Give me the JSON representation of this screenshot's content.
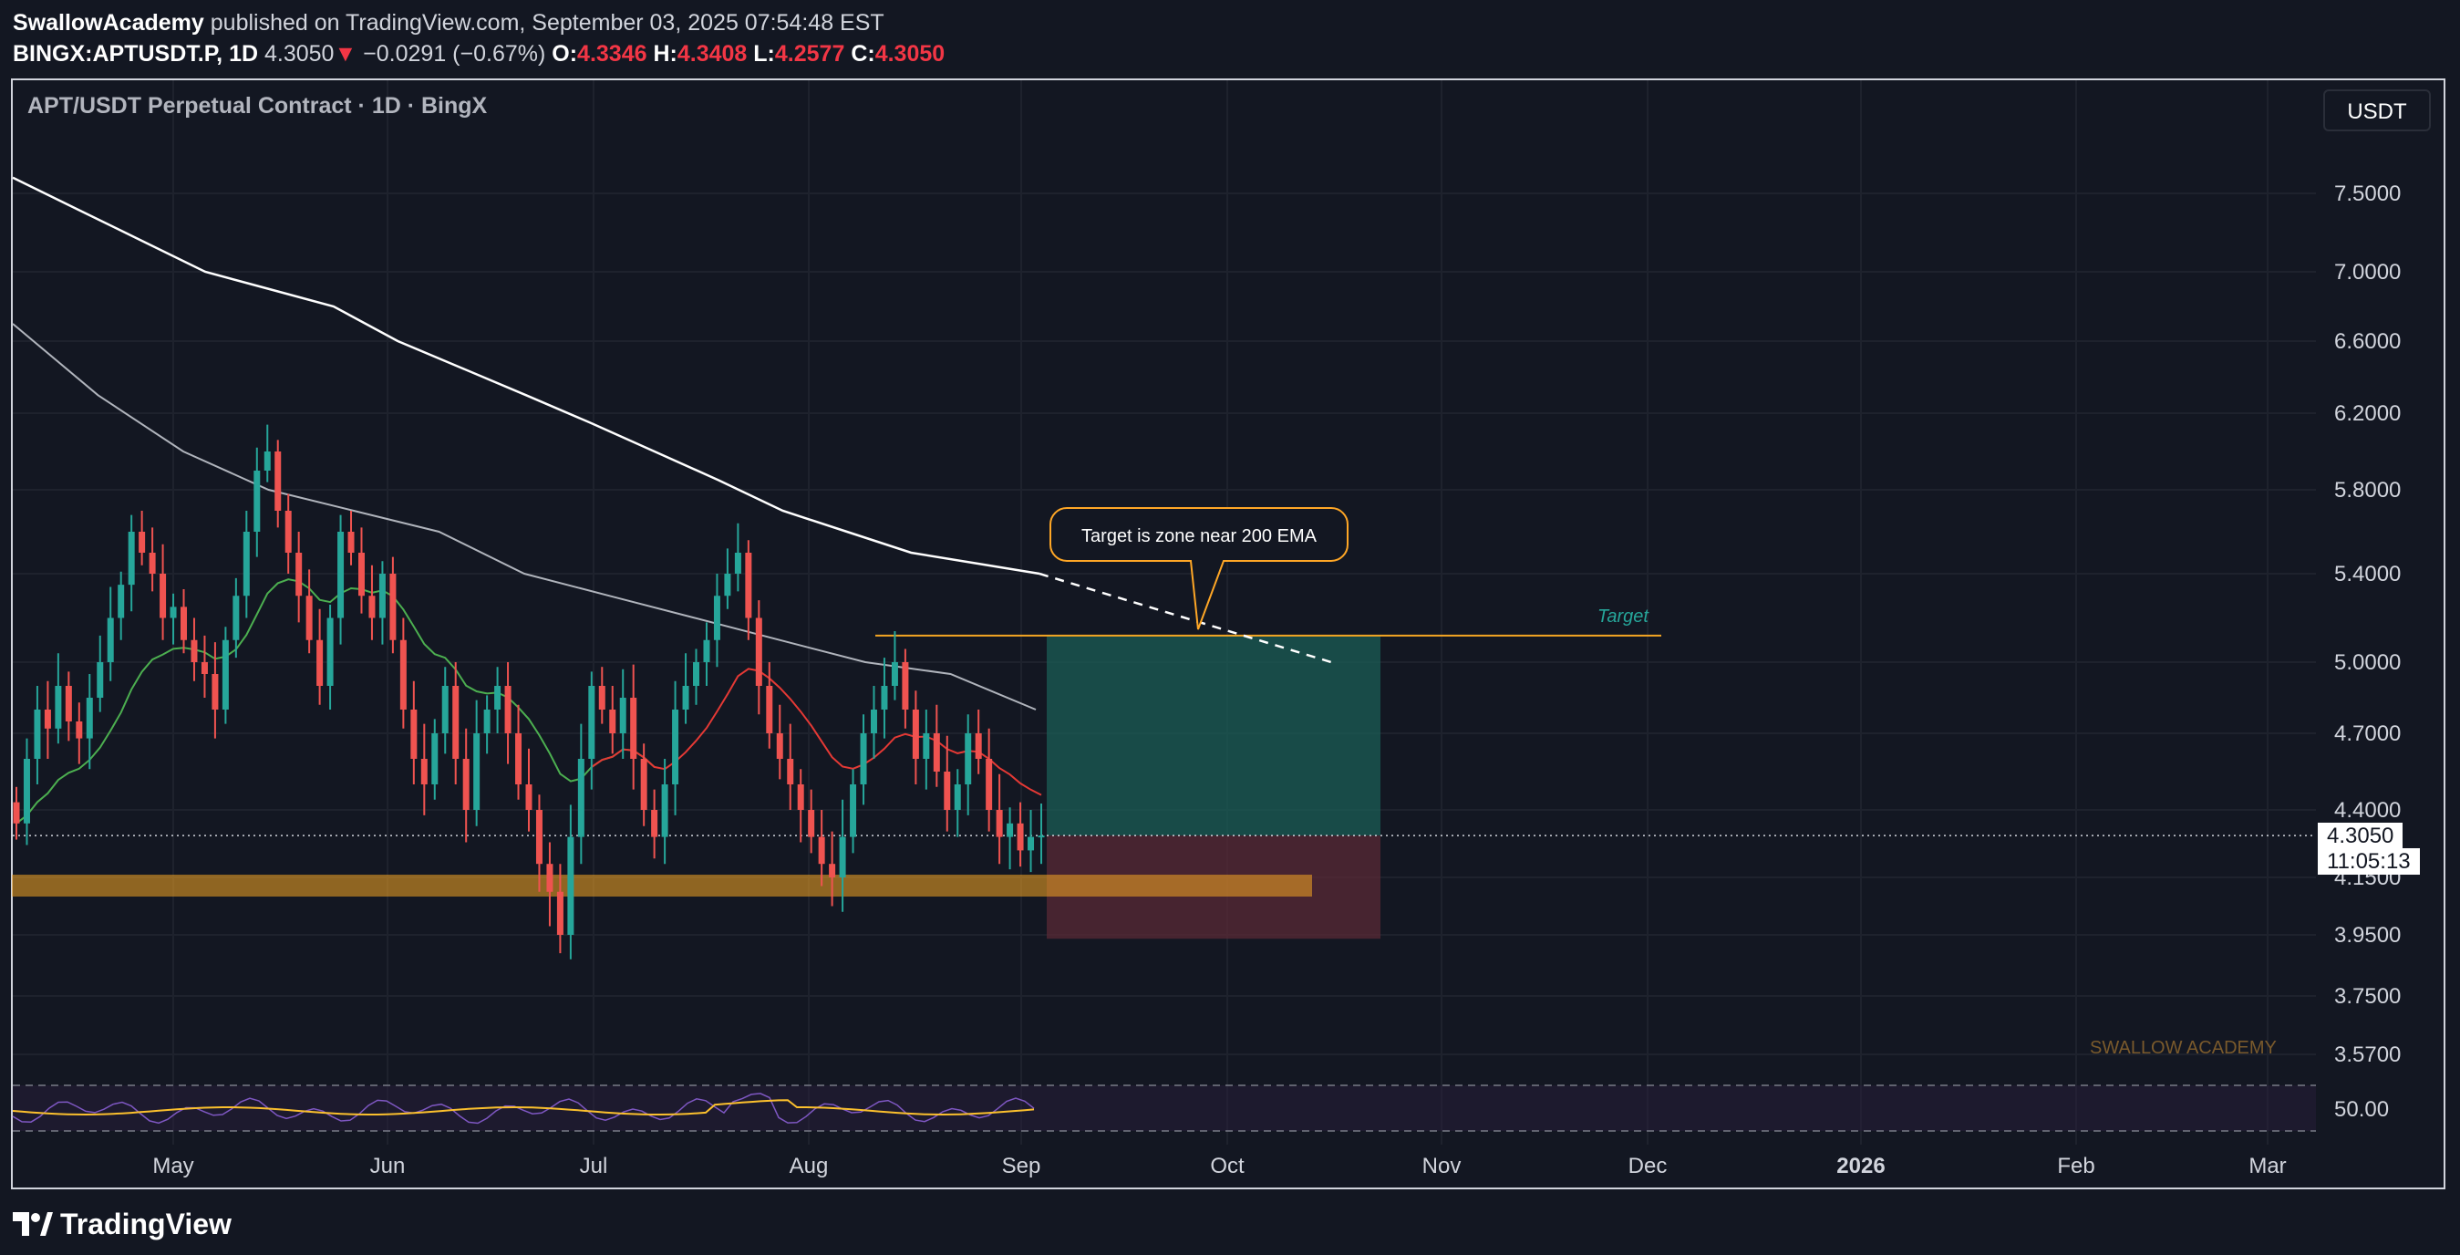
{
  "header": {
    "publisher": "SwallowAcademy",
    "published_text": " published on TradingView.com, September 03, 2025 07:54:48 EST",
    "symbol": "BINGX:APTUSDT.P, 1D",
    "last": "4.3050",
    "change_arrow": "▼",
    "change": "−0.0291 (−0.67%)",
    "o_label": "O:",
    "o_value": "4.3346",
    "h_label": "H:",
    "h_value": "4.3408",
    "l_label": "L:",
    "l_value": "4.2577",
    "c_label": "C:",
    "c_value": "4.3050"
  },
  "legend_title": "APT/USDT Perpetual Contract · 1D · BingX",
  "currency_button": "USDT",
  "price_tag": {
    "price": "4.3050",
    "countdown": "11:05:13"
  },
  "annotation": {
    "callout": "Target is zone near 200 EMA",
    "target_label": "Target",
    "watermark": "SWALLOW ACADEMY"
  },
  "footer": {
    "brand": "TradingView"
  },
  "colors": {
    "background": "#131722",
    "up": "#26a69a",
    "down": "#ef5350",
    "ema200": "#ffffff",
    "ema100": "#b0b4bc",
    "ema_fast_green": "#4caf50",
    "ema_fast_red": "#e53935",
    "target_zone": "#1b5e55",
    "stop_zone": "#5a2a36",
    "support_zone": "#f5a623",
    "callout_border": "#ffa726",
    "rsi_line": "#7e57c2",
    "rsi_ma": "#fbc02d"
  },
  "chart_data": {
    "type": "candlestick",
    "symbol": "APT/USDT Perpetual Contract",
    "timeframe": "1D",
    "ylim": [
      3.5,
      7.8
    ],
    "y_ticks": [
      "7.5000",
      "7.0000",
      "6.6000",
      "6.2000",
      "5.8000",
      "5.4000",
      "5.0000",
      "4.7000",
      "4.4000",
      "4.1500",
      "3.9500",
      "3.7500",
      "3.5700"
    ],
    "x_ticks": [
      "May",
      "Jun",
      "Jul",
      "Aug",
      "Sep",
      "Oct",
      "Nov",
      "Dec",
      "2026",
      "Feb",
      "Mar"
    ],
    "last_price": 4.305,
    "candles_close": [
      4.35,
      4.6,
      4.8,
      4.72,
      4.9,
      4.75,
      4.68,
      4.85,
      5.0,
      5.2,
      5.35,
      5.6,
      5.5,
      5.4,
      5.2,
      5.25,
      5.1,
      5.0,
      4.95,
      4.8,
      5.1,
      5.3,
      5.6,
      5.9,
      6.0,
      5.7,
      5.5,
      5.3,
      5.1,
      4.9,
      5.2,
      5.6,
      5.5,
      5.3,
      5.2,
      5.4,
      5.1,
      4.8,
      4.6,
      4.5,
      4.7,
      4.9,
      4.6,
      4.4,
      4.7,
      4.8,
      4.9,
      4.7,
      4.5,
      4.4,
      4.2,
      4.1,
      3.95,
      4.3,
      4.6,
      4.9,
      4.8,
      4.7,
      4.85,
      4.6,
      4.4,
      4.3,
      4.5,
      4.8,
      4.9,
      5.0,
      5.1,
      5.3,
      5.4,
      5.5,
      5.2,
      4.9,
      4.7,
      4.6,
      4.5,
      4.4,
      4.3,
      4.2,
      4.15,
      4.3,
      4.5,
      4.7,
      4.8,
      4.9,
      5.0,
      4.8,
      4.6,
      4.7,
      4.55,
      4.4,
      4.5,
      4.7,
      4.6,
      4.4,
      4.3,
      4.35,
      4.25,
      4.3,
      4.305
    ],
    "ema200": [
      7.6,
      7.4,
      7.2,
      7.0,
      6.9,
      6.8,
      6.6,
      6.45,
      6.3,
      6.15,
      6.0,
      5.85,
      5.7,
      5.6,
      5.5,
      5.45,
      5.4
    ],
    "ema100": [
      6.7,
      6.3,
      6.0,
      5.8,
      5.7,
      5.6,
      5.4,
      5.3,
      5.2,
      5.1,
      5.0,
      4.95,
      4.8
    ],
    "target_level": 5.12,
    "entry_level": 4.305,
    "stop_level": 4.0,
    "support_zone": [
      4.1,
      4.2
    ],
    "rsi_reference": "50.00"
  }
}
